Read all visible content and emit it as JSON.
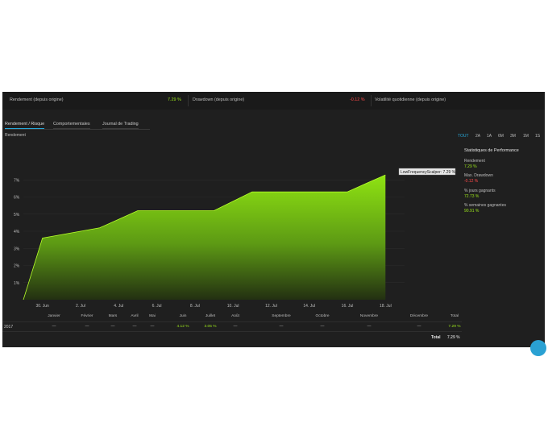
{
  "kpis": [
    {
      "label": "Rendement (depuis origine)",
      "value": "7.29 %",
      "tone": "green"
    },
    {
      "label": "Drawdown (depuis origine)",
      "value": "-0.12 %",
      "tone": "red"
    },
    {
      "label": "Volatilité quotidienne (depuis origine)",
      "value": ""
    }
  ],
  "tabs": [
    "Rendement / Risque",
    "Comportementales",
    "Journal de Trading"
  ],
  "chart_section_label": "Rendement",
  "ranges": [
    "TOUT",
    "2A",
    "1A",
    "6M",
    "3M",
    "1M",
    "1S"
  ],
  "stats": {
    "title": "Statistiques de Performance",
    "items": [
      {
        "label": "Rendement",
        "value": "7.29 %",
        "tone": "green"
      },
      {
        "label": "Max. Drawdown",
        "value": "-0.12 %",
        "tone": "red"
      },
      {
        "label": "% jours gagnants",
        "value": "72.73 %",
        "tone": "green"
      },
      {
        "label": "% semaines gagnantes",
        "value": "90.91 %",
        "tone": "green"
      }
    ]
  },
  "chart_data": {
    "type": "area",
    "x_tick_labels": [
      "30. Jun",
      "2. Jul",
      "4. Jul",
      "6. Jul",
      "8. Jul",
      "10. Jul",
      "12. Jul",
      "14. Jul",
      "16. Jul",
      "18. Jul"
    ],
    "y_tick_labels": [
      "1%",
      "2%",
      "3%",
      "4%",
      "5%",
      "6%",
      "7%"
    ],
    "ylim": [
      0,
      8
    ],
    "xlim": [
      0,
      20
    ],
    "series": [
      {
        "name": "LowFrequencyScalper",
        "x": [
          0,
          1,
          3,
          4,
          6,
          10,
          12,
          17,
          18,
          19
        ],
        "y": [
          0,
          3.6,
          4.0,
          4.2,
          5.2,
          5.2,
          6.3,
          6.3,
          6.8,
          7.29
        ]
      }
    ],
    "tooltip": "LowFrequencyScalper: 7.29 %",
    "color": "#9be51c"
  },
  "table": {
    "headers": [
      "Janvier",
      "Février",
      "Mars",
      "Avril",
      "Mai",
      "Juin",
      "Juillet",
      "Août",
      "Septembre",
      "Octobre",
      "Novembre",
      "Décembre",
      "Total"
    ],
    "rows": [
      {
        "year": "2017",
        "cells": [
          "—",
          "—",
          "—",
          "—",
          "—",
          "4.12 %",
          "3.05 %",
          "—",
          "—",
          "—",
          "—",
          "—",
          "7.29 %"
        ]
      }
    ],
    "total_label": "Total",
    "total_value": "7.29 %"
  }
}
